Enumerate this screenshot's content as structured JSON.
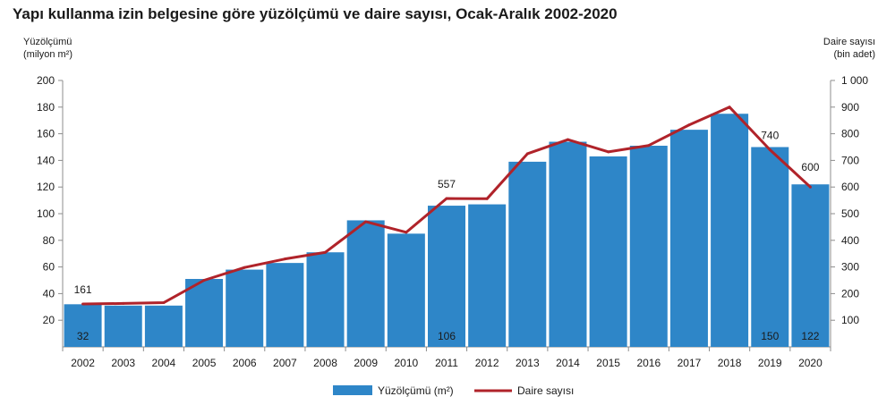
{
  "chart_data": {
    "type": "bar+line",
    "title": "Yapı kullanma izin belgesine göre yüzölçümü ve daire sayısı, Ocak-Aralık 2002-2020",
    "y_left_label": [
      "Yüzölçümü",
      "(milyon m²)"
    ],
    "y_right_label": [
      "Daire sayısı",
      "(bin adet)"
    ],
    "categories": [
      "2002",
      "2003",
      "2004",
      "2005",
      "2006",
      "2007",
      "2008",
      "2009",
      "2010",
      "2011",
      "2012",
      "2013",
      "2014",
      "2015",
      "2016",
      "2017",
      "2018",
      "2019",
      "2020"
    ],
    "y_left_ticks": [
      "20",
      "40",
      "60",
      "80",
      "100",
      "120",
      "140",
      "160",
      "180",
      "200"
    ],
    "y_right_ticks": [
      "100",
      "200",
      "300",
      "400",
      "500",
      "600",
      "700",
      "800",
      "900",
      "1 000"
    ],
    "ylim_left": [
      0,
      200
    ],
    "ylim_right": [
      0,
      1000
    ],
    "series": [
      {
        "name": "Yüzölçümü (m²)",
        "kind": "bar",
        "axis": "left",
        "color": "#2e86c8",
        "values": [
          32,
          31,
          31,
          51,
          58,
          63,
          71,
          95,
          85,
          106,
          107,
          139,
          154,
          143,
          151,
          163,
          175,
          150,
          122
        ]
      },
      {
        "name": "Daire sayısı",
        "kind": "line",
        "axis": "right",
        "color": "#b0232a",
        "values": [
          161,
          163,
          166,
          250,
          298,
          330,
          355,
          470,
          430,
          557,
          556,
          725,
          778,
          732,
          756,
          833,
          900,
          740,
          600
        ]
      }
    ],
    "data_labels": [
      {
        "series": 0,
        "index": 0,
        "text": "32"
      },
      {
        "series": 0,
        "index": 9,
        "text": "106"
      },
      {
        "series": 0,
        "index": 17,
        "text": "150"
      },
      {
        "series": 0,
        "index": 18,
        "text": "122"
      },
      {
        "series": 1,
        "index": 0,
        "text": "161"
      },
      {
        "series": 1,
        "index": 9,
        "text": "557"
      },
      {
        "series": 1,
        "index": 17,
        "text": "740"
      },
      {
        "series": 1,
        "index": 18,
        "text": "600"
      }
    ],
    "legend_position": "bottom",
    "grid": false
  }
}
